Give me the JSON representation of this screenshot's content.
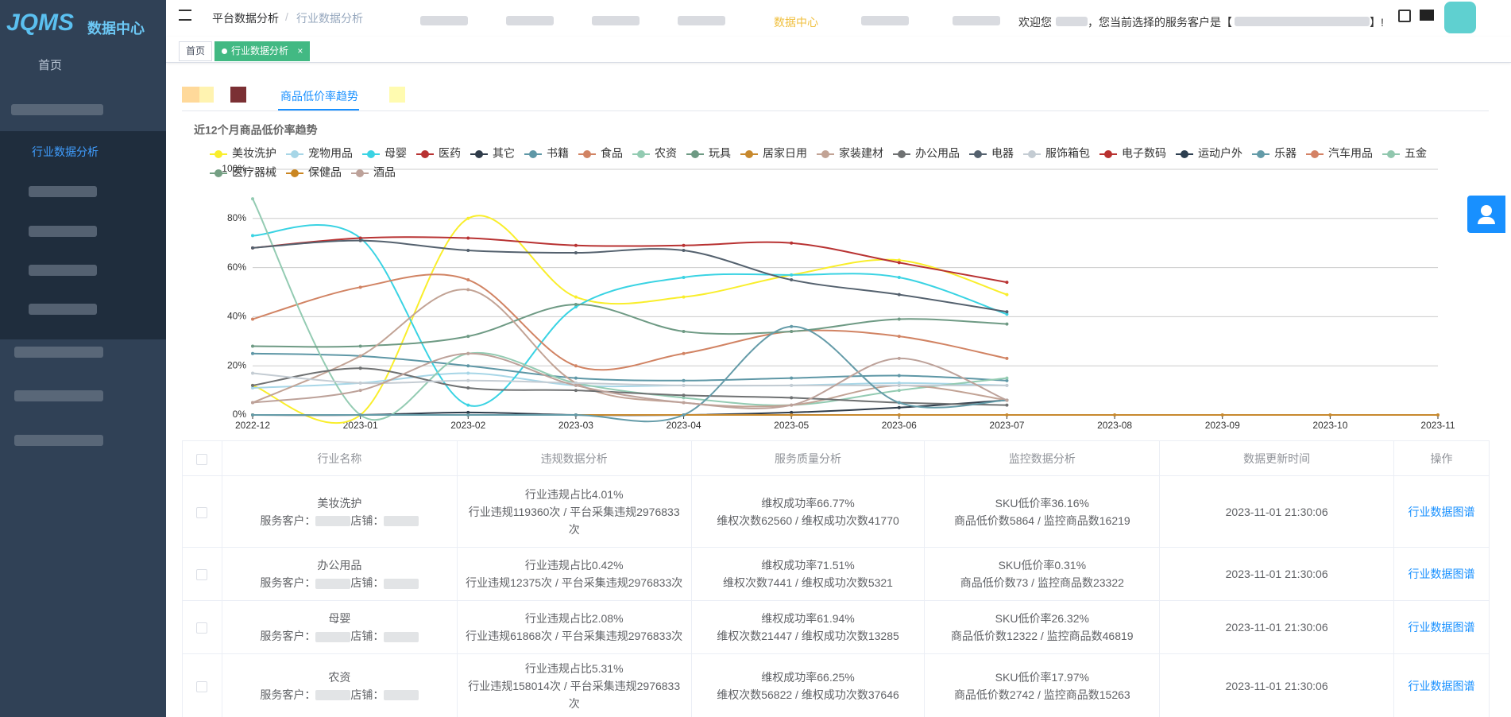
{
  "sidebar": {
    "logo": "JQMS",
    "logo_sub": "数据中心",
    "home": "首页",
    "active": "行业数据分析"
  },
  "header": {
    "breadcrumb": [
      "平台数据分析",
      "行业数据分析"
    ],
    "separator": "/",
    "nav_active": "数据中心",
    "welcome": "欢迎您",
    "welcome_mid": "，您当前选择的服务客户是【",
    "welcome_end": "】!"
  },
  "tabs": {
    "items": [
      "首页",
      "行业数据分析"
    ],
    "close": "×"
  },
  "subtab_active": "商品低价率趋势",
  "chart_data": {
    "type": "line",
    "title": "近12个月商品低价率趋势",
    "categories": [
      "2022-12",
      "2023-01",
      "2023-02",
      "2023-03",
      "2023-04",
      "2023-05",
      "2023-06",
      "2023-07",
      "2023-08",
      "2023-09",
      "2023-10",
      "2023-11"
    ],
    "ylim": [
      0,
      100
    ],
    "yticks": [
      {
        "value": 0,
        "label": "0%"
      },
      {
        "value": 20,
        "label": "20%"
      },
      {
        "value": 40,
        "label": "40%"
      },
      {
        "value": 60,
        "label": "60%"
      },
      {
        "value": 80,
        "label": "80%"
      },
      {
        "value": 100,
        "label": "100%"
      }
    ],
    "grid": true,
    "legend": "top",
    "smooth": true,
    "series": [
      {
        "name": "美妆洗护",
        "color": "#f9ee2c",
        "values": [
          12,
          0,
          80,
          48,
          48,
          57,
          63,
          49,
          null,
          null,
          null,
          null
        ]
      },
      {
        "name": "宠物用品",
        "color": "#a7d6e7",
        "values": [
          11,
          13,
          17,
          12,
          12,
          12,
          13,
          12,
          null,
          null,
          null,
          null
        ]
      },
      {
        "name": "母婴",
        "color": "#3ad3e3",
        "values": [
          73,
          72,
          4,
          44,
          56,
          57,
          56,
          41,
          null,
          null,
          null,
          null
        ]
      },
      {
        "name": "医药",
        "color": "#b83232",
        "values": [
          68,
          72,
          72,
          69,
          69,
          70,
          62,
          54,
          null,
          null,
          null,
          null
        ]
      },
      {
        "name": "其它",
        "color": "#2f3c4a",
        "values": [
          0,
          0,
          1,
          0,
          0,
          1,
          3,
          6,
          null,
          null,
          null,
          null
        ]
      },
      {
        "name": "书籍",
        "color": "#5e97a6",
        "values": [
          25,
          24,
          20,
          15,
          14,
          15,
          16,
          14,
          null,
          null,
          null,
          null
        ]
      },
      {
        "name": "食品",
        "color": "#d18363",
        "values": [
          39,
          52,
          55,
          20,
          25,
          34,
          32,
          23,
          null,
          null,
          null,
          null
        ]
      },
      {
        "name": "农资",
        "color": "#93cbb2",
        "values": [
          88,
          0,
          25,
          13,
          7,
          4,
          10,
          15,
          null,
          null,
          null,
          null
        ]
      },
      {
        "name": "玩具",
        "color": "#6e9a84",
        "values": [
          28,
          28,
          32,
          45,
          34,
          34,
          39,
          37,
          null,
          null,
          null,
          null
        ]
      },
      {
        "name": "居家日用",
        "color": "#c7892e",
        "values": [
          0,
          0,
          0,
          0,
          0,
          0,
          0,
          0,
          0,
          0,
          0,
          0
        ]
      },
      {
        "name": "家装建材",
        "color": "#c2a395",
        "values": [
          5,
          24,
          51,
          13,
          5,
          4,
          12,
          6,
          null,
          null,
          null,
          null
        ]
      },
      {
        "name": "办公用品",
        "color": "#6f7172",
        "values": [
          12,
          19,
          11,
          10,
          8,
          7,
          5,
          4,
          null,
          null,
          null,
          null
        ]
      },
      {
        "name": "电器",
        "color": "#54616e",
        "values": [
          68,
          71,
          67,
          66,
          67,
          55,
          49,
          42,
          null,
          null,
          null,
          null
        ]
      },
      {
        "name": "服饰箱包",
        "color": "#c4ccd3",
        "values": [
          17,
          13,
          14,
          13,
          12,
          12,
          12,
          12,
          null,
          null,
          null,
          null
        ]
      },
      {
        "name": "电子数码",
        "color": "#b8312f",
        "values": [
          null,
          null,
          null,
          null,
          null,
          null,
          null,
          null,
          null,
          null,
          null,
          null
        ]
      },
      {
        "name": "运动户外",
        "color": "#2c3e50",
        "values": [
          null,
          null,
          null,
          null,
          null,
          null,
          null,
          null,
          null,
          null,
          null,
          null
        ]
      },
      {
        "name": "乐器",
        "color": "#649ba8",
        "values": [
          0,
          0,
          0,
          0,
          0,
          36,
          5,
          6,
          null,
          null,
          null,
          null
        ]
      },
      {
        "name": "汽车用品",
        "color": "#d48265",
        "values": [
          null,
          null,
          null,
          null,
          null,
          null,
          null,
          null,
          null,
          null,
          null,
          null
        ]
      },
      {
        "name": "五金",
        "color": "#91c7ae",
        "values": [
          null,
          null,
          null,
          null,
          null,
          null,
          null,
          null,
          null,
          null,
          null,
          null
        ]
      },
      {
        "name": "医疗器械",
        "color": "#749f83",
        "values": [
          null,
          null,
          null,
          null,
          null,
          null,
          null,
          null,
          null,
          null,
          null,
          null
        ]
      },
      {
        "name": "保健品",
        "color": "#ca8622",
        "values": [
          null,
          null,
          null,
          null,
          null,
          null,
          null,
          null,
          null,
          null,
          null,
          null
        ]
      },
      {
        "name": "酒品",
        "color": "#bda29a",
        "values": [
          5,
          10,
          25,
          12,
          5,
          4,
          23,
          6,
          null,
          null,
          null,
          null
        ]
      }
    ]
  },
  "table": {
    "columns": [
      "行业名称",
      "违规数据分析",
      "服务质量分析",
      "监控数据分析",
      "数据更新时间",
      "操作"
    ],
    "customer_label": "服务客户：",
    "shop_label": "店铺：",
    "rows": [
      {
        "name": "美妆洗护",
        "violation": [
          "行业违规占比4.01%",
          "行业违规119360次 / 平台采集违规2976833次"
        ],
        "service": [
          "维权成功率66.77%",
          "维权次数62560 / 维权成功次数41770"
        ],
        "monitor": [
          "SKU低价率36.16%",
          "商品低价数5864 / 监控商品数16219"
        ],
        "time": "2023-11-01 21:30:06",
        "action": "行业数据图谱"
      },
      {
        "name": "办公用品",
        "violation": [
          "行业违规占比0.42%",
          "行业违规12375次 / 平台采集违规2976833次"
        ],
        "service": [
          "维权成功率71.51%",
          "维权次数7441 / 维权成功次数5321"
        ],
        "monitor": [
          "SKU低价率0.31%",
          "商品低价数73 / 监控商品数23322"
        ],
        "time": "2023-11-01 21:30:06",
        "action": "行业数据图谱"
      },
      {
        "name": "母婴",
        "violation": [
          "行业违规占比2.08%",
          "行业违规61868次 / 平台采集违规2976833次"
        ],
        "service": [
          "维权成功率61.94%",
          "维权次数21447 / 维权成功次数13285"
        ],
        "monitor": [
          "SKU低价率26.32%",
          "商品低价数12322 / 监控商品数46819"
        ],
        "time": "2023-11-01 21:30:06",
        "action": "行业数据图谱"
      },
      {
        "name": "农资",
        "violation": [
          "行业违规占比5.31%",
          "行业违规158014次 / 平台采集违规2976833次"
        ],
        "service": [
          "维权成功率66.25%",
          "维权次数56822 / 维权成功次数37646"
        ],
        "monitor": [
          "SKU低价率17.97%",
          "商品低价数2742 / 监控商品数15263"
        ],
        "time": "2023-11-01 21:30:06",
        "action": "行业数据图谱"
      }
    ]
  }
}
